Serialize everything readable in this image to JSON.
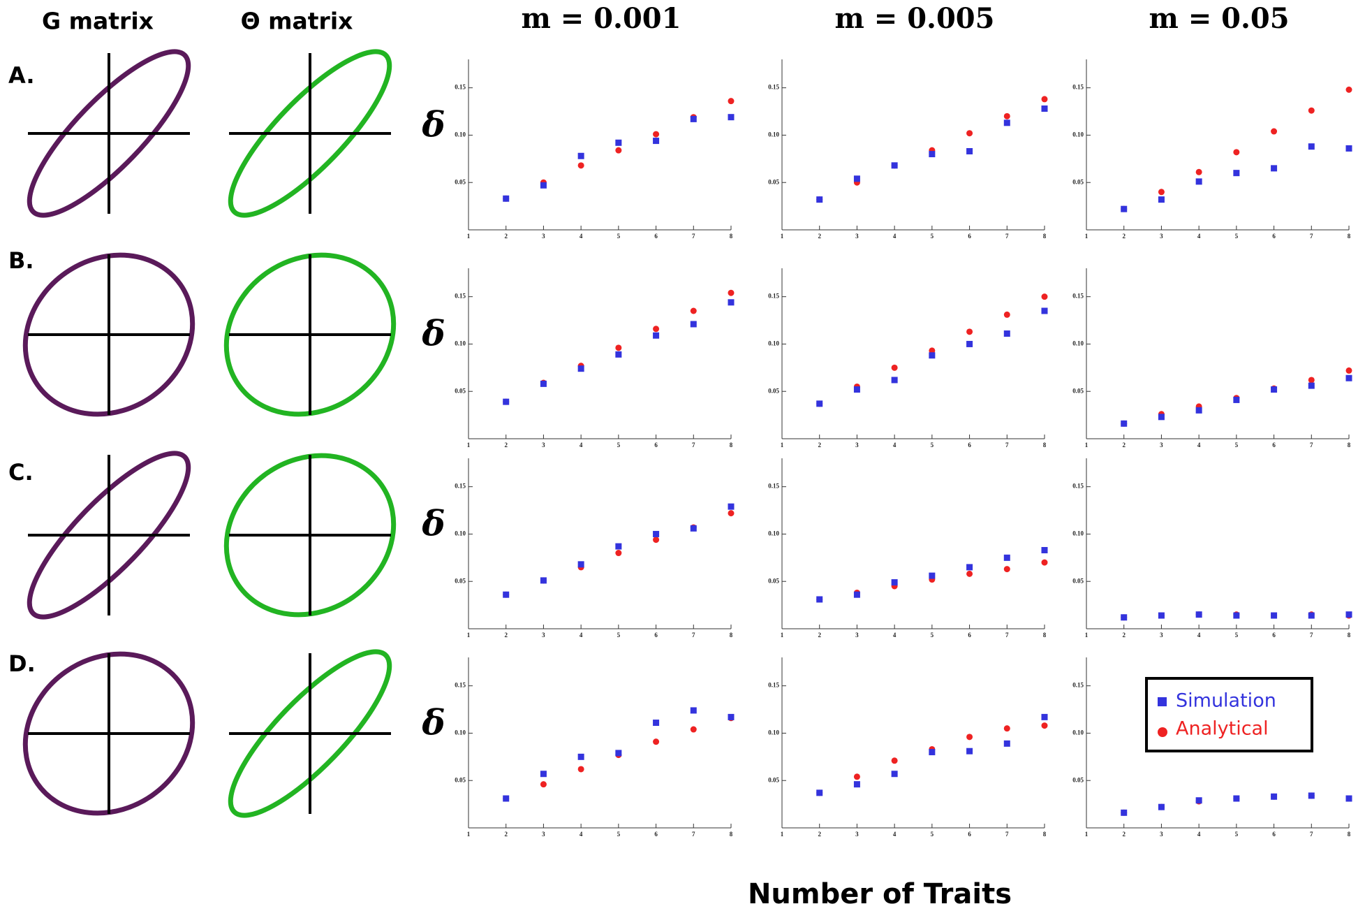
{
  "ellipse_headers": [
    "G matrix",
    "Θ matrix"
  ],
  "column_headers": [
    "m = 0.001",
    "m = 0.005",
    "m = 0.05"
  ],
  "row_labels": [
    "A.",
    "B.",
    "C.",
    "D."
  ],
  "x_label": "Number of Traits",
  "chart_data": [
    {
      "type": "scatter",
      "ylabel": "δ",
      "x": [
        2,
        3,
        4,
        5,
        6,
        7,
        8
      ],
      "xlim": [
        1,
        8
      ],
      "xticks": [
        1,
        2,
        3,
        4,
        5,
        6,
        7,
        8
      ],
      "ylim": [
        0,
        0.18
      ],
      "yticks": [
        0.05,
        {
          "value": 0.1,
          "label": "0.10"
        },
        0.15
      ],
      "legend": false,
      "series": [
        {
          "color": "#ee2222",
          "marker": "circle",
          "values": [
            0.033,
            0.05,
            0.068,
            0.084,
            0.101,
            0.119,
            0.136
          ]
        },
        {
          "color": "#3333dd",
          "marker": "square",
          "values": [
            0.033,
            0.047,
            0.078,
            0.092,
            0.094,
            0.117,
            0.119
          ]
        }
      ]
    },
    {
      "type": "scatter",
      "x": [
        2,
        3,
        4,
        5,
        6,
        7,
        8
      ],
      "xlim": [
        1,
        8
      ],
      "xticks": [
        1,
        2,
        3,
        4,
        5,
        6,
        7,
        8
      ],
      "ylim": [
        0,
        0.18
      ],
      "yticks": [
        0.05,
        {
          "value": 0.1,
          "label": "0.10"
        },
        0.15
      ],
      "legend": false,
      "series": [
        {
          "color": "#ee2222",
          "marker": "circle",
          "values": [
            0.032,
            0.05,
            0.068,
            0.084,
            0.102,
            0.12,
            0.138
          ]
        },
        {
          "color": "#3333dd",
          "marker": "square",
          "values": [
            0.032,
            0.054,
            0.068,
            0.08,
            0.083,
            0.113,
            0.128
          ]
        }
      ]
    },
    {
      "type": "scatter",
      "x": [
        2,
        3,
        4,
        5,
        6,
        7,
        8
      ],
      "xlim": [
        1,
        8
      ],
      "xticks": [
        1,
        2,
        3,
        4,
        5,
        6,
        7,
        8
      ],
      "ylim": [
        0,
        0.18
      ],
      "yticks": [
        0.05,
        {
          "value": 0.1,
          "label": "0.10"
        },
        0.15
      ],
      "legend": false,
      "series": [
        {
          "color": "#ee2222",
          "marker": "circle",
          "values": [
            0.022,
            0.04,
            0.061,
            0.082,
            0.104,
            0.126,
            0.148
          ]
        },
        {
          "color": "#3333dd",
          "marker": "square",
          "values": [
            0.022,
            0.032,
            0.051,
            0.06,
            0.065,
            0.088,
            0.086
          ]
        }
      ]
    },
    {
      "type": "scatter",
      "ylabel": "δ",
      "x": [
        2,
        3,
        4,
        5,
        6,
        7,
        8
      ],
      "xlim": [
        1,
        8
      ],
      "xticks": [
        1,
        2,
        3,
        4,
        5,
        6,
        7,
        8
      ],
      "ylim": [
        0,
        0.18
      ],
      "yticks": [
        0.05,
        {
          "value": 0.1,
          "label": "0.10"
        },
        0.15
      ],
      "legend": false,
      "series": [
        {
          "color": "#ee2222",
          "marker": "circle",
          "values": [
            0.039,
            0.059,
            0.077,
            0.096,
            0.116,
            0.135,
            0.154
          ]
        },
        {
          "color": "#3333dd",
          "marker": "square",
          "values": [
            0.039,
            0.058,
            0.074,
            0.089,
            0.109,
            0.121,
            0.144
          ]
        }
      ]
    },
    {
      "type": "scatter",
      "x": [
        2,
        3,
        4,
        5,
        6,
        7,
        8
      ],
      "xlim": [
        1,
        8
      ],
      "xticks": [
        1,
        2,
        3,
        4,
        5,
        6,
        7,
        8
      ],
      "ylim": [
        0,
        0.18
      ],
      "yticks": [
        0.05,
        {
          "value": 0.1,
          "label": "0.10"
        },
        0.15
      ],
      "legend": false,
      "series": [
        {
          "color": "#ee2222",
          "marker": "circle",
          "values": [
            0.037,
            0.055,
            0.075,
            0.093,
            0.113,
            0.131,
            0.15
          ]
        },
        {
          "color": "#3333dd",
          "marker": "square",
          "values": [
            0.037,
            0.052,
            0.062,
            0.088,
            0.1,
            0.111,
            0.135
          ]
        }
      ]
    },
    {
      "type": "scatter",
      "x": [
        2,
        3,
        4,
        5,
        6,
        7,
        8
      ],
      "xlim": [
        1,
        8
      ],
      "xticks": [
        1,
        2,
        3,
        4,
        5,
        6,
        7,
        8
      ],
      "ylim": [
        0,
        0.18
      ],
      "yticks": [
        0.05,
        {
          "value": 0.1,
          "label": "0.10"
        },
        0.15
      ],
      "legend": false,
      "series": [
        {
          "color": "#ee2222",
          "marker": "circle",
          "values": [
            0.016,
            0.026,
            0.034,
            0.043,
            0.053,
            0.062,
            0.072
          ]
        },
        {
          "color": "#3333dd",
          "marker": "square",
          "values": [
            0.016,
            0.023,
            0.03,
            0.041,
            0.052,
            0.056,
            0.064
          ]
        }
      ]
    },
    {
      "type": "scatter",
      "ylabel": "δ",
      "x": [
        2,
        3,
        4,
        5,
        6,
        7,
        8
      ],
      "xlim": [
        1,
        8
      ],
      "xticks": [
        1,
        2,
        3,
        4,
        5,
        6,
        7,
        8
      ],
      "ylim": [
        0,
        0.18
      ],
      "yticks": [
        0.05,
        {
          "value": 0.1,
          "label": "0.10"
        },
        0.15
      ],
      "legend": false,
      "series": [
        {
          "color": "#ee2222",
          "marker": "circle",
          "values": [
            0.036,
            0.051,
            0.065,
            0.08,
            0.094,
            0.107,
            0.122
          ]
        },
        {
          "color": "#3333dd",
          "marker": "square",
          "values": [
            0.036,
            0.051,
            0.068,
            0.087,
            0.1,
            0.106,
            0.129
          ]
        }
      ]
    },
    {
      "type": "scatter",
      "x": [
        2,
        3,
        4,
        5,
        6,
        7,
        8
      ],
      "xlim": [
        1,
        8
      ],
      "xticks": [
        1,
        2,
        3,
        4,
        5,
        6,
        7,
        8
      ],
      "ylim": [
        0,
        0.18
      ],
      "yticks": [
        0.05,
        {
          "value": 0.1,
          "label": "0.10"
        },
        0.15
      ],
      "legend": false,
      "series": [
        {
          "color": "#ee2222",
          "marker": "circle",
          "values": [
            0.031,
            0.038,
            0.045,
            0.052,
            0.058,
            0.063,
            0.07
          ]
        },
        {
          "color": "#3333dd",
          "marker": "square",
          "values": [
            0.031,
            0.036,
            0.049,
            0.056,
            0.065,
            0.075,
            0.083
          ]
        }
      ]
    },
    {
      "type": "scatter",
      "x": [
        2,
        3,
        4,
        5,
        6,
        7,
        8
      ],
      "xlim": [
        1,
        8
      ],
      "xticks": [
        1,
        2,
        3,
        4,
        5,
        6,
        7,
        8
      ],
      "ylim": [
        0,
        0.18
      ],
      "yticks": [
        0.05,
        {
          "value": 0.1,
          "label": "0.10"
        },
        0.15
      ],
      "legend": false,
      "series": [
        {
          "color": "#ee2222",
          "marker": "circle",
          "values": [
            0.012,
            0.014,
            0.015,
            0.015,
            0.014,
            0.015,
            0.014
          ]
        },
        {
          "color": "#3333dd",
          "marker": "square",
          "values": [
            0.012,
            0.014,
            0.015,
            0.014,
            0.014,
            0.014,
            0.015
          ]
        }
      ]
    },
    {
      "type": "scatter",
      "ylabel": "δ",
      "x": [
        2,
        3,
        4,
        5,
        6,
        7,
        8
      ],
      "xlim": [
        1,
        8
      ],
      "xticks": [
        1,
        2,
        3,
        4,
        5,
        6,
        7,
        8
      ],
      "ylim": [
        0,
        0.18
      ],
      "yticks": [
        0.05,
        {
          "value": 0.1,
          "label": "0.10"
        },
        0.15
      ],
      "legend": false,
      "series": [
        {
          "color": "#ee2222",
          "marker": "circle",
          "values": [
            0.031,
            0.046,
            0.062,
            0.077,
            0.091,
            0.104,
            0.116
          ]
        },
        {
          "color": "#3333dd",
          "marker": "square",
          "values": [
            0.031,
            0.057,
            0.075,
            0.079,
            0.111,
            0.124,
            0.117
          ]
        }
      ]
    },
    {
      "type": "scatter",
      "x": [
        2,
        3,
        4,
        5,
        6,
        7,
        8
      ],
      "xlim": [
        1,
        8
      ],
      "xticks": [
        1,
        2,
        3,
        4,
        5,
        6,
        7,
        8
      ],
      "ylim": [
        0,
        0.18
      ],
      "yticks": [
        0.05,
        {
          "value": 0.1,
          "label": "0.10"
        },
        0.15
      ],
      "legend": false,
      "series": [
        {
          "color": "#ee2222",
          "marker": "circle",
          "values": [
            0.037,
            0.054,
            0.071,
            0.083,
            0.096,
            0.105,
            0.108
          ]
        },
        {
          "color": "#3333dd",
          "marker": "square",
          "values": [
            0.037,
            0.046,
            0.057,
            0.08,
            0.081,
            0.089,
            0.117
          ]
        }
      ]
    },
    {
      "type": "scatter",
      "x": [
        2,
        3,
        4,
        5,
        6,
        7,
        8
      ],
      "xlim": [
        1,
        8
      ],
      "xticks": [
        1,
        2,
        3,
        4,
        5,
        6,
        7,
        8
      ],
      "ylim": [
        0,
        0.18
      ],
      "yticks": [
        0.05,
        {
          "value": 0.1,
          "label": "0.10"
        },
        0.15
      ],
      "legend": "upper right",
      "series": [
        {
          "name": "Analytical",
          "color": "#ee2222",
          "marker": "circle",
          "values": [
            0.016,
            0.022,
            0.028,
            0.031,
            0.033,
            0.034,
            0.031
          ]
        },
        {
          "name": "Simulation",
          "color": "#3333dd",
          "marker": "square",
          "values": [
            0.016,
            0.022,
            0.029,
            0.031,
            0.033,
            0.034,
            0.031
          ]
        }
      ]
    }
  ]
}
